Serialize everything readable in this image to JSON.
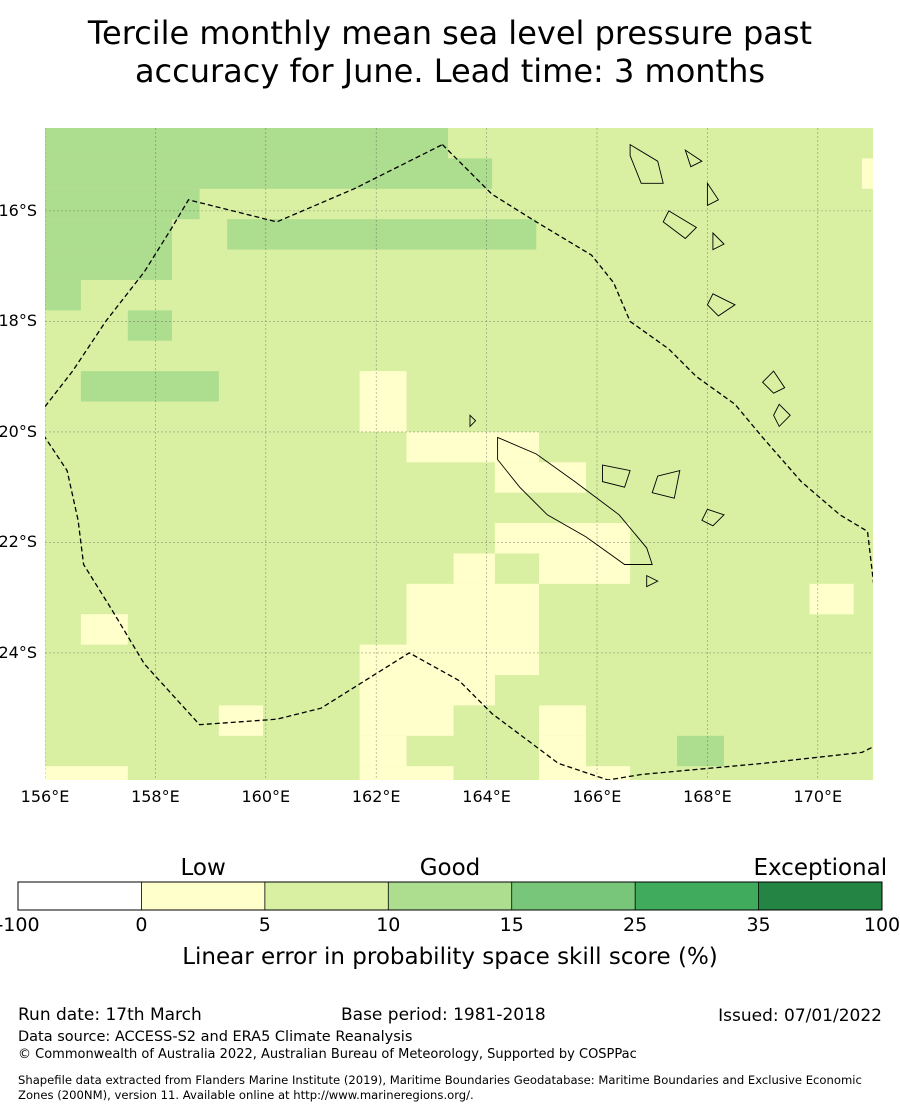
{
  "title": {
    "line1": "Tercile monthly mean sea level pressure past",
    "line2": "accuracy for June. Lead time: 3 months"
  },
  "map": {
    "lon_labels": [
      "156°E",
      "158°E",
      "160°E",
      "162°E",
      "164°E",
      "166°E",
      "168°E",
      "170°E"
    ],
    "lat_labels": [
      "16°S",
      "18°S",
      "20°S",
      "22°S",
      "24°S"
    ],
    "lon_range": [
      156.0,
      171.0
    ],
    "lat_range": [
      -14.5,
      -26.3
    ],
    "grid_lines": true,
    "cell_size_deg": [
      0.83,
      0.55
    ],
    "default_category": "5-10",
    "regions": [
      {
        "category": "10-15",
        "lon": [
          156.0,
          163.3
        ],
        "lat": [
          -14.5,
          -15.05
        ]
      },
      {
        "category": "10-15",
        "lon": [
          156.0,
          164.1
        ],
        "lat": [
          -15.05,
          -15.6
        ]
      },
      {
        "category": "10-15",
        "lon": [
          156.0,
          158.8
        ],
        "lat": [
          -15.6,
          -16.15
        ]
      },
      {
        "category": "10-15",
        "lon": [
          156.0,
          158.3
        ],
        "lat": [
          -16.15,
          -16.7
        ]
      },
      {
        "category": "10-15",
        "lon": [
          159.3,
          164.9
        ],
        "lat": [
          -16.15,
          -16.7
        ]
      },
      {
        "category": "10-15",
        "lon": [
          156.0,
          158.3
        ],
        "lat": [
          -16.7,
          -17.25
        ]
      },
      {
        "category": "10-15",
        "lon": [
          156.0,
          156.65
        ],
        "lat": [
          -17.25,
          -17.8
        ]
      },
      {
        "category": "10-15",
        "lon": [
          157.5,
          158.3
        ],
        "lat": [
          -17.8,
          -18.35
        ]
      },
      {
        "category": "10-15",
        "lon": [
          156.65,
          159.15
        ],
        "lat": [
          -18.9,
          -19.45
        ]
      },
      {
        "category": "10-15",
        "lon": [
          167.45,
          168.3
        ],
        "lat": [
          -25.5,
          -26.05
        ]
      },
      {
        "category": "0-5",
        "lon": [
          170.8,
          171.0
        ],
        "lat": [
          -15.05,
          -15.6
        ]
      },
      {
        "category": "0-5",
        "lon": [
          161.7,
          162.55
        ],
        "lat": [
          -18.9,
          -20.0
        ]
      },
      {
        "category": "0-5",
        "lon": [
          162.55,
          164.95
        ],
        "lat": [
          -20.0,
          -20.55
        ]
      },
      {
        "category": "0-5",
        "lon": [
          164.15,
          165.8
        ],
        "lat": [
          -20.55,
          -21.1
        ]
      },
      {
        "category": "0-5",
        "lon": [
          164.15,
          166.6
        ],
        "lat": [
          -21.65,
          -22.2
        ]
      },
      {
        "category": "0-5",
        "lon": [
          164.95,
          166.6
        ],
        "lat": [
          -22.2,
          -22.75
        ]
      },
      {
        "category": "0-5",
        "lon": [
          163.4,
          164.15
        ],
        "lat": [
          -22.2,
          -22.75
        ]
      },
      {
        "category": "0-5",
        "lon": [
          162.55,
          164.95
        ],
        "lat": [
          -22.75,
          -24.4
        ]
      },
      {
        "category": "0-5",
        "lon": [
          169.85,
          170.65
        ],
        "lat": [
          -22.75,
          -23.3
        ]
      },
      {
        "category": "0-5",
        "lon": [
          156.65,
          157.5
        ],
        "lat": [
          -23.3,
          -23.85
        ]
      },
      {
        "category": "0-5",
        "lon": [
          161.7,
          164.15
        ],
        "lat": [
          -23.85,
          -24.4
        ]
      },
      {
        "category": "0-5",
        "lon": [
          161.7,
          164.15
        ],
        "lat": [
          -24.4,
          -24.95
        ]
      },
      {
        "category": "0-5",
        "lon": [
          161.7,
          163.4
        ],
        "lat": [
          -24.95,
          -25.5
        ]
      },
      {
        "category": "0-5",
        "lon": [
          164.95,
          165.8
        ],
        "lat": [
          -24.95,
          -25.5
        ]
      },
      {
        "category": "0-5",
        "lon": [
          159.15,
          159.95
        ],
        "lat": [
          -24.95,
          -25.5
        ]
      },
      {
        "category": "0-5",
        "lon": [
          161.7,
          162.55
        ],
        "lat": [
          -25.5,
          -26.05
        ]
      },
      {
        "category": "0-5",
        "lon": [
          164.95,
          165.8
        ],
        "lat": [
          -25.5,
          -26.05
        ]
      },
      {
        "category": "0-5",
        "lon": [
          161.7,
          163.4
        ],
        "lat": [
          -26.05,
          -26.3
        ]
      },
      {
        "category": "0-5",
        "lon": [
          156.0,
          157.5
        ],
        "lat": [
          -26.05,
          -26.3
        ]
      },
      {
        "category": "0-5",
        "lon": [
          164.95,
          166.6
        ],
        "lat": [
          -26.05,
          -26.3
        ]
      },
      {
        "category": "0-5",
        "lon": [
          159.15,
          160.8
        ],
        "lat": [
          -26.3,
          -26.3
        ]
      }
    ],
    "eez_boundary": [
      [
        163.2,
        -14.8
      ],
      [
        164.1,
        -15.7
      ],
      [
        164.9,
        -16.2
      ],
      [
        165.9,
        -16.8
      ],
      [
        166.3,
        -17.3
      ],
      [
        166.6,
        -18.0
      ],
      [
        167.3,
        -18.5
      ],
      [
        167.8,
        -19.0
      ],
      [
        168.5,
        -19.5
      ],
      [
        169.0,
        -20.1
      ],
      [
        169.7,
        -20.9
      ],
      [
        170.4,
        -21.5
      ],
      [
        170.9,
        -21.8
      ],
      [
        171.1,
        -23.5
      ],
      [
        171.4,
        -25.5
      ],
      [
        170.8,
        -25.8
      ],
      [
        169.0,
        -26.0
      ],
      [
        166.8,
        -26.2
      ],
      [
        166.2,
        -26.3
      ],
      [
        165.3,
        -26.0
      ],
      [
        164.1,
        -25.1
      ],
      [
        163.5,
        -24.5
      ],
      [
        162.6,
        -24.0
      ],
      [
        161.8,
        -24.5
      ],
      [
        161.0,
        -25.0
      ],
      [
        160.2,
        -25.2
      ],
      [
        158.8,
        -25.3
      ],
      [
        157.8,
        -24.2
      ],
      [
        157.2,
        -23.2
      ],
      [
        156.7,
        -22.4
      ],
      [
        156.6,
        -21.6
      ],
      [
        156.4,
        -20.7
      ],
      [
        155.8,
        -19.8
      ],
      [
        156.5,
        -18.9
      ],
      [
        157.1,
        -18.0
      ],
      [
        157.8,
        -17.1
      ],
      [
        158.3,
        -16.3
      ],
      [
        158.6,
        -15.8
      ],
      [
        160.2,
        -16.2
      ],
      [
        161.6,
        -15.6
      ],
      [
        163.2,
        -14.8
      ]
    ],
    "land_outlines": [
      [
        [
          164.2,
          -20.1
        ],
        [
          164.9,
          -20.4
        ],
        [
          165.6,
          -20.9
        ],
        [
          166.4,
          -21.5
        ],
        [
          166.9,
          -22.1
        ],
        [
          167.0,
          -22.4
        ],
        [
          166.5,
          -22.4
        ],
        [
          165.8,
          -21.9
        ],
        [
          165.1,
          -21.5
        ],
        [
          164.6,
          -21.0
        ],
        [
          164.2,
          -20.5
        ],
        [
          164.2,
          -20.1
        ]
      ],
      [
        [
          166.1,
          -20.6
        ],
        [
          166.6,
          -20.7
        ],
        [
          166.5,
          -21.0
        ],
        [
          166.1,
          -20.9
        ],
        [
          166.1,
          -20.6
        ]
      ],
      [
        [
          167.1,
          -20.8
        ],
        [
          167.5,
          -20.7
        ],
        [
          167.4,
          -21.2
        ],
        [
          167.0,
          -21.1
        ],
        [
          167.1,
          -20.8
        ]
      ],
      [
        [
          168.0,
          -21.4
        ],
        [
          168.3,
          -21.5
        ],
        [
          168.1,
          -21.7
        ],
        [
          167.9,
          -21.6
        ],
        [
          168.0,
          -21.4
        ]
      ],
      [
        [
          163.7,
          -19.7
        ],
        [
          163.8,
          -19.8
        ],
        [
          163.7,
          -19.9
        ],
        [
          163.7,
          -19.7
        ]
      ],
      [
        [
          166.9,
          -22.6
        ],
        [
          167.1,
          -22.7
        ],
        [
          166.9,
          -22.8
        ],
        [
          166.9,
          -22.6
        ]
      ],
      [
        [
          166.6,
          -14.8
        ],
        [
          167.1,
          -15.1
        ],
        [
          167.2,
          -15.5
        ],
        [
          166.8,
          -15.5
        ],
        [
          166.6,
          -15.0
        ],
        [
          166.6,
          -14.8
        ]
      ],
      [
        [
          167.3,
          -16.0
        ],
        [
          167.8,
          -16.3
        ],
        [
          167.6,
          -16.5
        ],
        [
          167.2,
          -16.2
        ],
        [
          167.3,
          -16.0
        ]
      ],
      [
        [
          168.1,
          -16.4
        ],
        [
          168.3,
          -16.6
        ],
        [
          168.1,
          -16.7
        ],
        [
          168.1,
          -16.4
        ]
      ],
      [
        [
          168.1,
          -17.5
        ],
        [
          168.5,
          -17.7
        ],
        [
          168.2,
          -17.9
        ],
        [
          168.0,
          -17.7
        ],
        [
          168.1,
          -17.5
        ]
      ],
      [
        [
          169.2,
          -18.9
        ],
        [
          169.4,
          -19.2
        ],
        [
          169.2,
          -19.3
        ],
        [
          169.0,
          -19.1
        ],
        [
          169.2,
          -18.9
        ]
      ],
      [
        [
          169.3,
          -19.5
        ],
        [
          169.5,
          -19.7
        ],
        [
          169.3,
          -19.9
        ],
        [
          169.2,
          -19.7
        ],
        [
          169.3,
          -19.5
        ]
      ],
      [
        [
          168.0,
          -15.5
        ],
        [
          168.2,
          -15.8
        ],
        [
          168.0,
          -15.9
        ],
        [
          168.0,
          -15.5
        ]
      ],
      [
        [
          167.6,
          -14.9
        ],
        [
          167.9,
          -15.1
        ],
        [
          167.7,
          -15.2
        ],
        [
          167.6,
          -14.9
        ]
      ]
    ]
  },
  "colorbar": {
    "categories": [
      {
        "label": "Low",
        "at": "0-5"
      },
      {
        "label": "Good",
        "at": "10-15"
      },
      {
        "label": "Exceptional",
        "at": "35-100"
      }
    ],
    "bins": [
      {
        "key": "-100-0",
        "from": "-100",
        "to": "0",
        "color": "#ffffff"
      },
      {
        "key": "0-5",
        "from": "0",
        "to": "5",
        "color": "#ffffcc"
      },
      {
        "key": "5-10",
        "from": "5",
        "to": "10",
        "color": "#d9f0a3"
      },
      {
        "key": "10-15",
        "from": "10",
        "to": "15",
        "color": "#addd8e"
      },
      {
        "key": "15-25",
        "from": "15",
        "to": "25",
        "color": "#78c679"
      },
      {
        "key": "25-35",
        "from": "25",
        "to": "35",
        "color": "#41ab5d"
      },
      {
        "key": "35-100",
        "from": "35",
        "to": "100",
        "color": "#238443"
      }
    ],
    "ticks": [
      "-100",
      "0",
      "5",
      "10",
      "15",
      "25",
      "35",
      "100"
    ],
    "title": "Linear error in probability space skill score (%)"
  },
  "footer": {
    "run_date": "Run date: 17th March",
    "base_period": "Base period: 1981-2018",
    "issued": "Issued: 07/01/2022",
    "data_source": "Data source: ACCESS-S2 and ERA5 Climate Reanalysis",
    "copyright": "© Commonwealth of Australia 2022, Australian Bureau of Meteorology, Supported by COSPPac",
    "shapefile_line1": "Shapefile data extracted from Flanders Marine Institute (2019), Maritime Boundaries Geodatabase: Maritime Boundaries and Exclusive Economic",
    "shapefile_line2": "Zones (200NM), version 11. Available online at http://www.marineregions.org/."
  }
}
